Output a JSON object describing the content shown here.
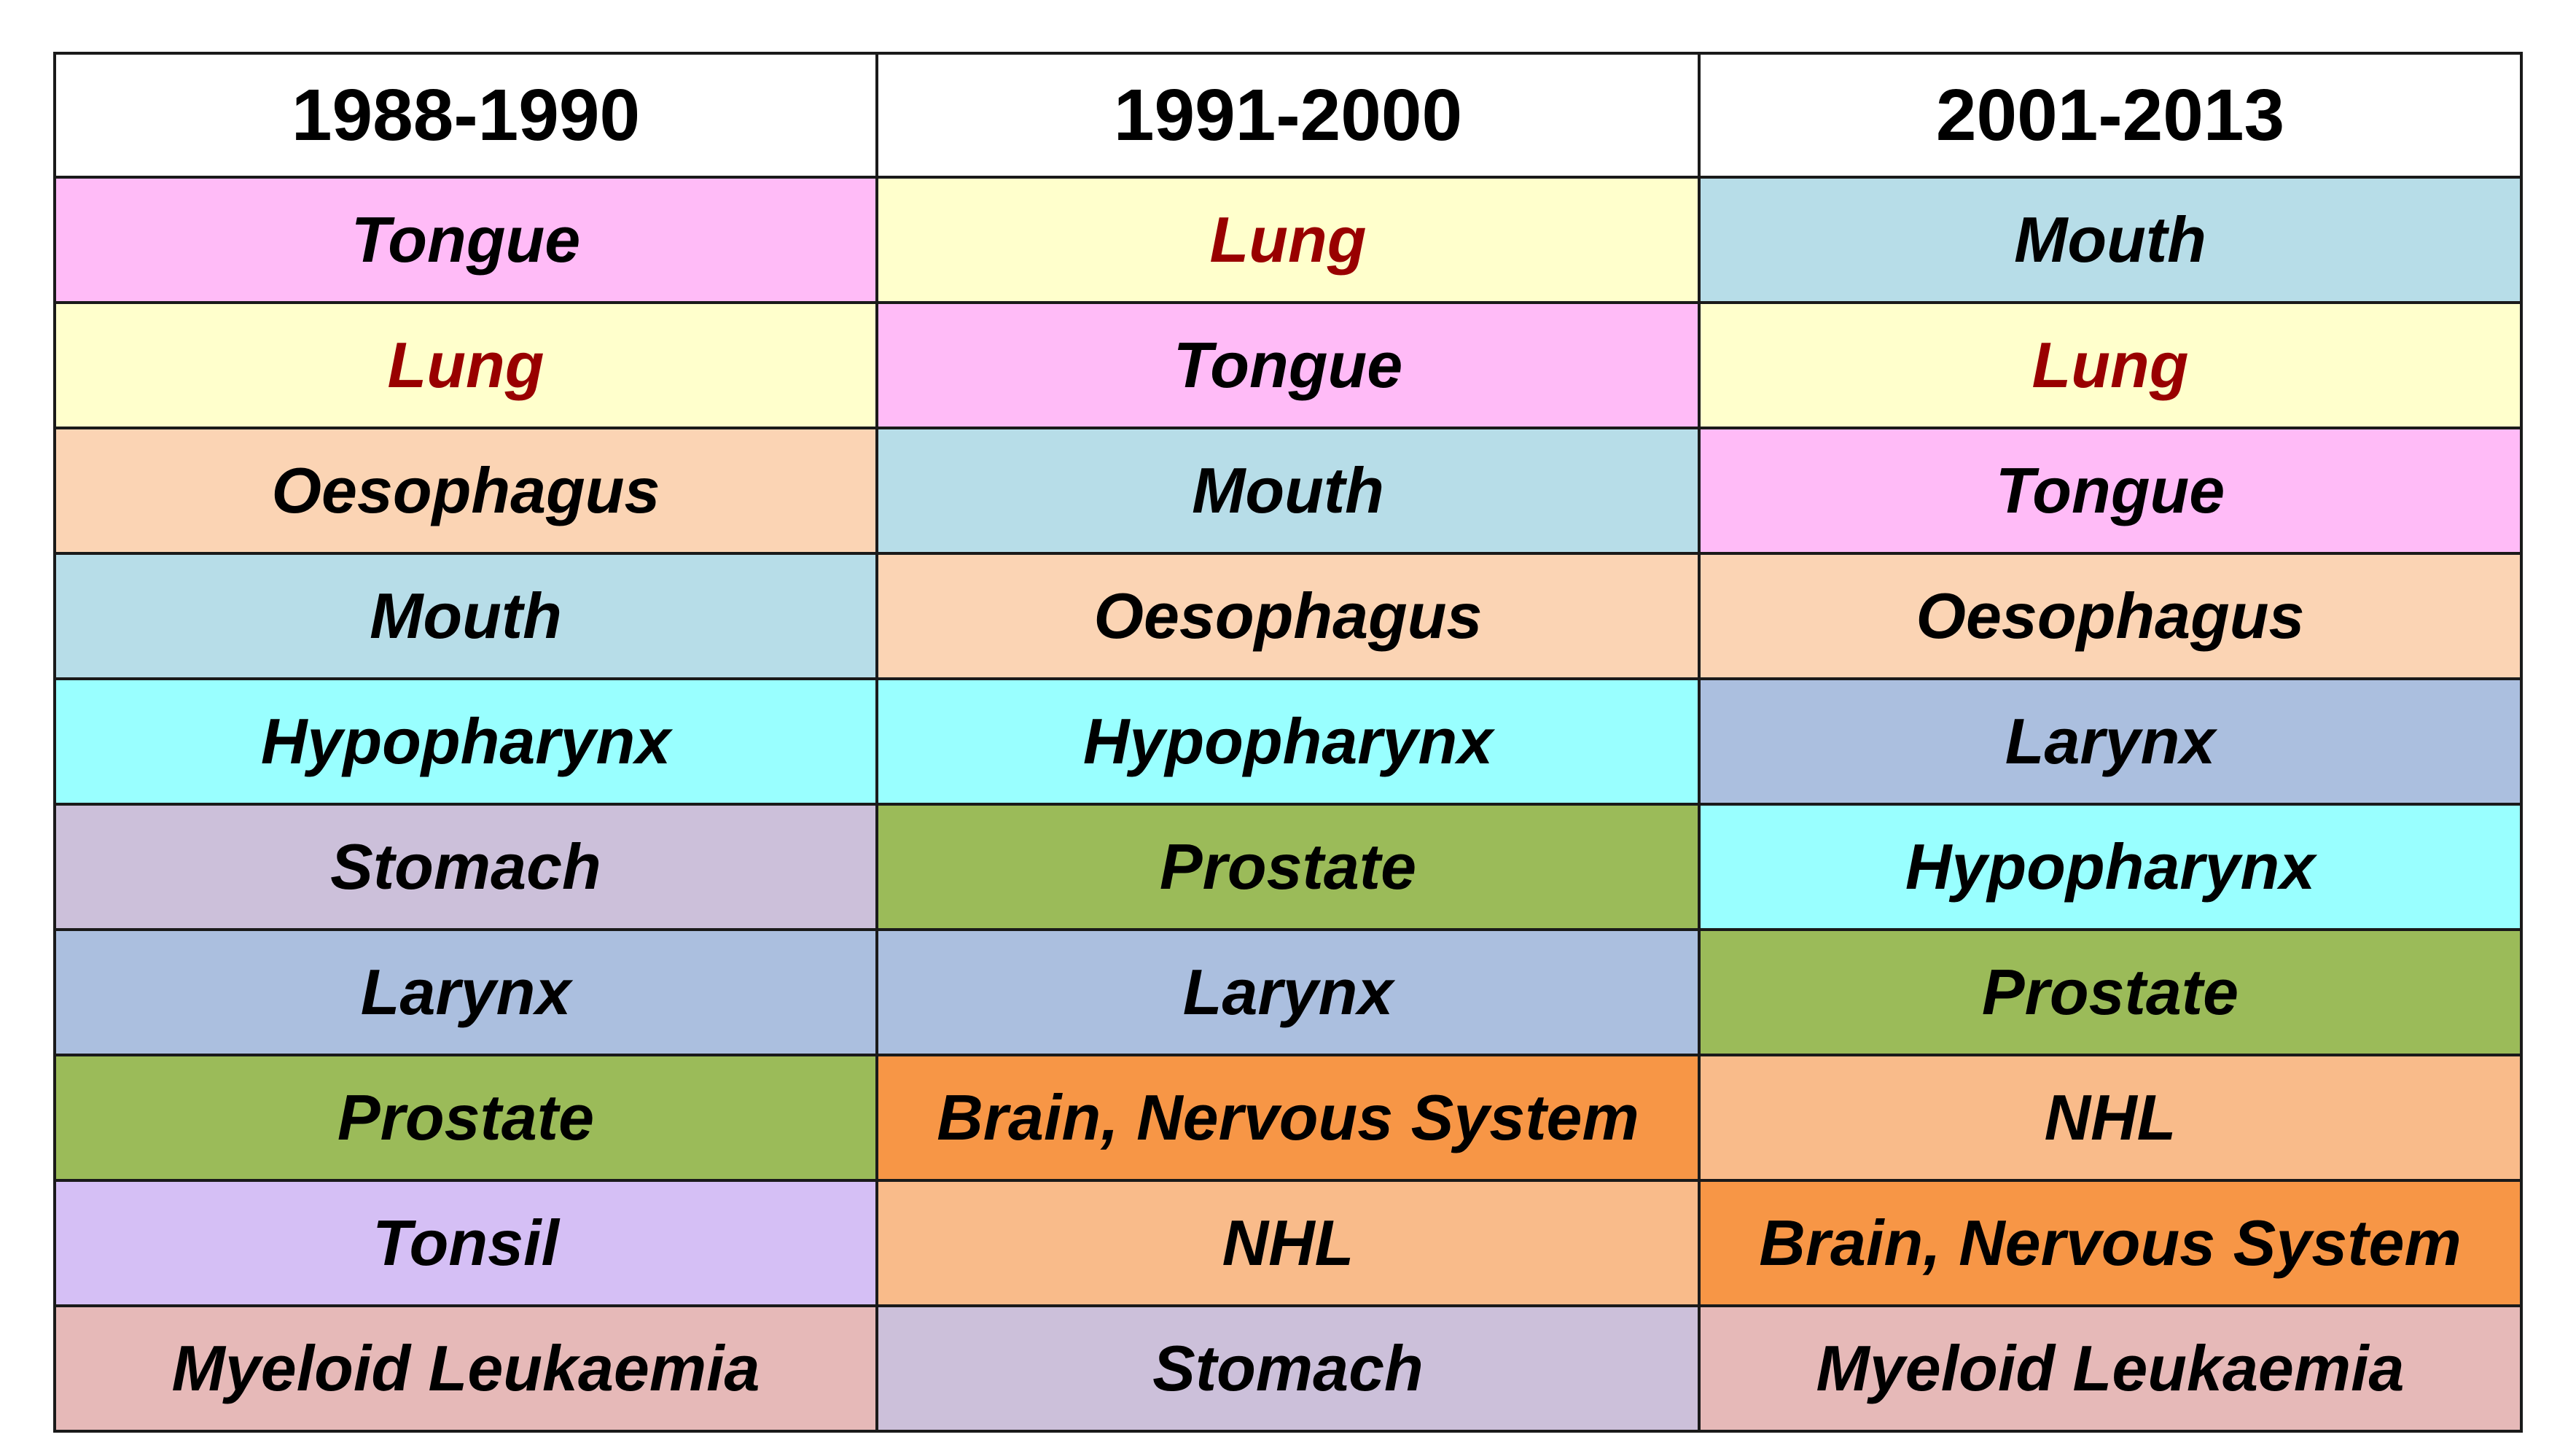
{
  "colors": {
    "Tongue": "#ffbbf7",
    "Lung": "#ffffcc",
    "Mouth": "#b7dde8",
    "Oesophagus": "#fbd4b4",
    "Hypopharynx": "#99ffff",
    "Stomach": "#ccc0da",
    "Larynx": "#abbfdf",
    "Prostate": "#9bbb59",
    "Brain, Nervous System": "#f79646",
    "NHL": "#f9bb8a",
    "Tonsil": "#d5bff5",
    "Myeloid Leukaemia": "#e6b9b8"
  },
  "lung_text_color": "#990000",
  "table": {
    "headers": [
      "1988-1990",
      "1991-2000",
      "2001-2013"
    ],
    "rows": [
      [
        "Tongue",
        "Lung",
        "Mouth"
      ],
      [
        "Lung",
        "Tongue",
        "Lung"
      ],
      [
        "Oesophagus",
        "Mouth",
        "Tongue"
      ],
      [
        "Mouth",
        "Oesophagus",
        "Oesophagus"
      ],
      [
        "Hypopharynx",
        "Hypopharynx",
        "Larynx"
      ],
      [
        "Stomach",
        "Prostate",
        "Hypopharynx"
      ],
      [
        "Larynx",
        "Larynx",
        "Prostate"
      ],
      [
        "Prostate",
        "Brain, Nervous System",
        "NHL"
      ],
      [
        "Tonsil",
        "NHL",
        "Brain, Nervous System"
      ],
      [
        "Myeloid Leukaemia",
        "Stomach",
        "Myeloid Leukaemia"
      ]
    ]
  }
}
